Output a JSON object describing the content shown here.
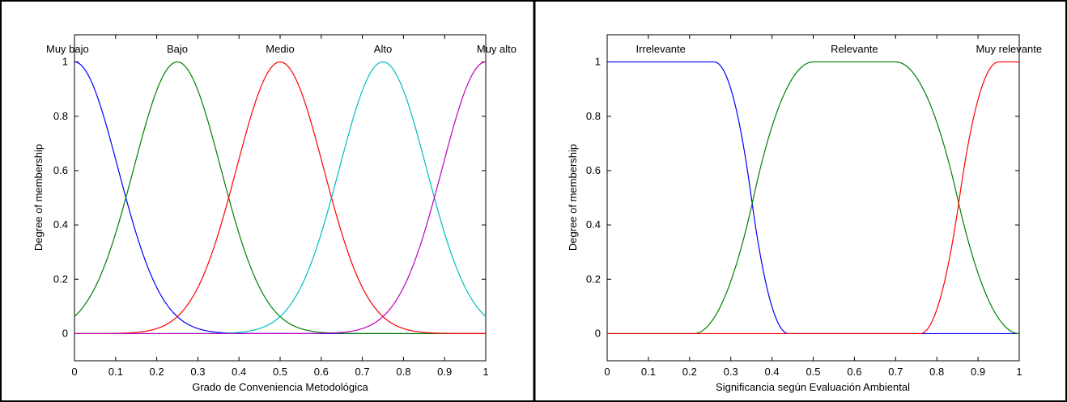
{
  "chart_data": [
    {
      "type": "line",
      "title": "",
      "xlabel": "Grado de Conveniencia Metodológica",
      "ylabel": "Degree of membership",
      "xlim": [
        0,
        1
      ],
      "ylim": [
        -0.1,
        1.1
      ],
      "x_ticks": [
        "0",
        "0.1",
        "0.2",
        "0.3",
        "0.4",
        "0.5",
        "0.6",
        "0.7",
        "0.8",
        "0.9",
        "1"
      ],
      "y_ticks": [
        "0",
        "0.2",
        "0.4",
        "0.6",
        "0.8",
        "1"
      ],
      "grid": false,
      "series": [
        {
          "name": "Muy bajo",
          "shape": "gaussian",
          "center": 0.0,
          "sigma": 0.1062,
          "color": "#0000ff"
        },
        {
          "name": "Bajo",
          "shape": "gaussian",
          "center": 0.25,
          "sigma": 0.1062,
          "color": "#008000"
        },
        {
          "name": "Medio",
          "shape": "gaussian",
          "center": 0.5,
          "sigma": 0.1062,
          "color": "#ff0000"
        },
        {
          "name": "Alto",
          "shape": "gaussian",
          "center": 0.75,
          "sigma": 0.1062,
          "color": "#00bfbf"
        },
        {
          "name": "Muy alto",
          "shape": "gaussian",
          "center": 1.0,
          "sigma": 0.1062,
          "color": "#bf00bf"
        }
      ]
    },
    {
      "type": "line",
      "title": "",
      "xlabel": "Significancia según Evaluación Ambiental",
      "ylabel": "Degree of membership",
      "xlim": [
        0,
        1
      ],
      "ylim": [
        -0.1,
        1.1
      ],
      "x_ticks": [
        "0",
        "0.1",
        "0.2",
        "0.3",
        "0.4",
        "0.5",
        "0.6",
        "0.7",
        "0.8",
        "0.9",
        "1"
      ],
      "y_ticks": [
        "0",
        "0.2",
        "0.4",
        "0.6",
        "0.8",
        "1"
      ],
      "grid": false,
      "series": [
        {
          "name": "Irrelevante",
          "shape": "zmf",
          "params": [
            0.26,
            0.44
          ],
          "color": "#0000ff"
        },
        {
          "name": "Relevante",
          "shape": "pimf",
          "params": [
            0.21,
            0.5,
            0.7,
            1.0
          ],
          "color": "#008000"
        },
        {
          "name": "Muy relevante",
          "shape": "smf",
          "params": [
            0.76,
            0.95
          ],
          "color": "#ff0000"
        }
      ]
    }
  ]
}
